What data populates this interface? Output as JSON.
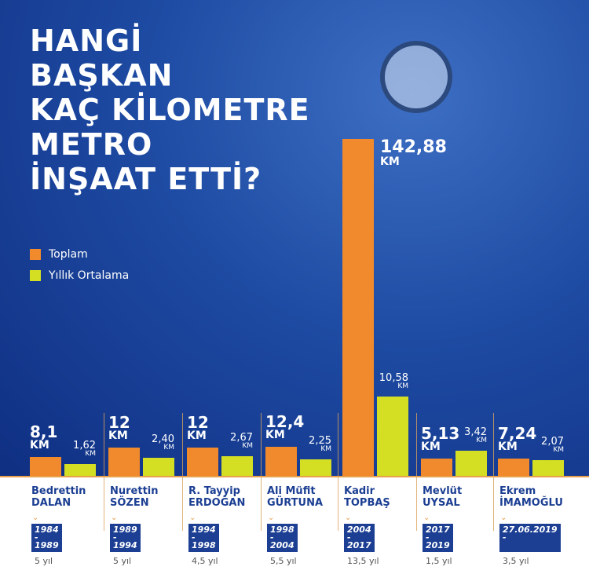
{
  "title": "HANGİ BAŞKAN KAÇ KİLOMETRE METRO İNŞAAT ETTİ?",
  "title_lines": [
    "HANGİ",
    "BAŞKAN",
    "KAÇ KİLOMETRE",
    "METRO",
    "İNŞAAT ETTİ?"
  ],
  "colors": {
    "toplam": "#f08a2c",
    "yillik": "#d4df23",
    "background": "#1e4ba3",
    "name": "#1c3f93"
  },
  "chart_data": {
    "type": "bar",
    "categories": [
      "Bedrettin DALAN",
      "Nurettin SÖZEN",
      "R. Tayyip ERDOĞAN",
      "Ali Müfit GÜRTUNA",
      "Kadir TOPBAŞ",
      "Mevlüt UYSAL",
      "Ekrem İMAMOĞLU"
    ],
    "series": [
      {
        "name": "Toplam",
        "values": [
          8.1,
          12,
          12,
          12.4,
          142.88,
          5.13,
          7.24
        ],
        "labels": [
          "8,1",
          "12",
          "12",
          "12,4",
          "142,88",
          "5,13",
          "7,24"
        ]
      },
      {
        "name": "Yıllık Ortalama",
        "values": [
          1.62,
          2.4,
          2.67,
          2.25,
          10.58,
          3.42,
          2.07
        ],
        "labels": [
          "1,62",
          "2,40",
          "2,67",
          "2,25",
          "10,58",
          "3,42",
          "2,07"
        ]
      }
    ],
    "unit": "KM",
    "legend": "left",
    "presidents": [
      {
        "first": "Bedrettin",
        "last": "DALAN",
        "y1": "1984",
        "sep": "-",
        "y2": "1989",
        "dur": "5 yıl"
      },
      {
        "first": "Nurettin",
        "last": "SÖZEN",
        "y1": "1989",
        "sep": "-",
        "y2": "1994",
        "dur": "5 yıl"
      },
      {
        "first": "R. Tayyip",
        "last": "ERDOĞAN",
        "y1": "1994",
        "sep": "-",
        "y2": "1998",
        "dur": "4,5 yıl"
      },
      {
        "first": "Ali Müfit",
        "last": "GÜRTUNA",
        "y1": "1998",
        "sep": "-",
        "y2": "2004",
        "dur": "5,5 yıl"
      },
      {
        "first": "Kadir",
        "last": "TOPBAŞ",
        "y1": "2004",
        "sep": "-",
        "y2": "2017",
        "dur": "13,5 yıl"
      },
      {
        "first": "Mevlüt",
        "last": "UYSAL",
        "y1": "2017",
        "sep": "-",
        "y2": "2019",
        "dur": "1,5 yıl"
      },
      {
        "first": "Ekrem",
        "last": "İMAMOĞLU",
        "y1": "27.06.2019",
        "sep": "-",
        "y2": "",
        "dur": "3,5 yıl"
      }
    ]
  }
}
